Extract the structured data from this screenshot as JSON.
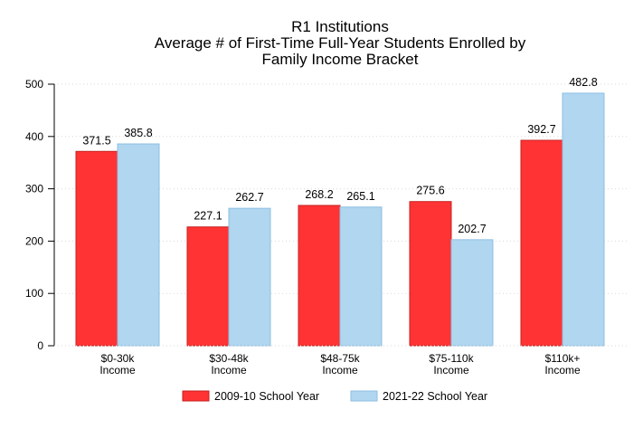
{
  "chart_data": {
    "type": "bar",
    "title": [
      "R1 Institutions",
      "Average # of First-Time Full-Year Students Enrolled by",
      "Family Income Bracket"
    ],
    "categories": [
      [
        "$0-30k",
        "Income"
      ],
      [
        "$30-48k",
        "Income"
      ],
      [
        "$48-75k",
        "Income"
      ],
      [
        "$75-110k",
        "Income"
      ],
      [
        "$110k+",
        "Income"
      ]
    ],
    "series": [
      {
        "name": "2009-10 School Year",
        "values": [
          371.5,
          227.1,
          268.2,
          275.6,
          392.7
        ],
        "color": "#ff3333",
        "stroke": "#c42121"
      },
      {
        "name": "2021-22 School Year",
        "values": [
          385.8,
          262.7,
          265.1,
          202.7,
          482.8
        ],
        "color": "#b0d6f0",
        "stroke": "#8ebfe2"
      }
    ],
    "data_labels": [
      [
        "371.5",
        "227.1",
        "268.2",
        "275.6",
        "392.7"
      ],
      [
        "385.8",
        "262.7",
        "265.1",
        "202.7",
        "482.8"
      ]
    ],
    "ylim": [
      0,
      500
    ],
    "yticks": [
      "0",
      "100",
      "200",
      "300",
      "400",
      "500"
    ],
    "grid": true,
    "legend": "bottom"
  }
}
